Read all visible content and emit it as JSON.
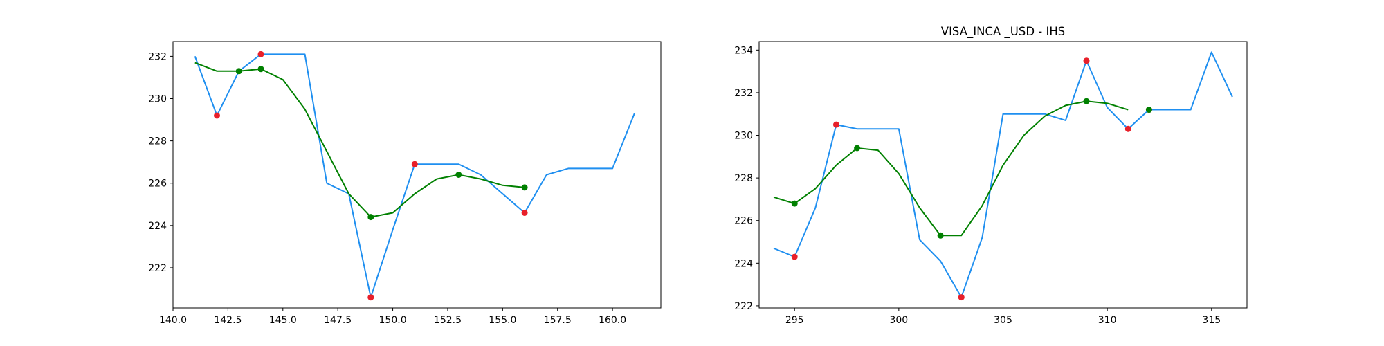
{
  "chart_data": [
    {
      "type": "line",
      "title": "",
      "xlabel": "",
      "ylabel": "",
      "xlim": [
        140,
        162.2
      ],
      "ylim": [
        220.1,
        232.7
      ],
      "xticks": [
        140,
        142.5,
        145,
        147.5,
        150,
        152.5,
        155,
        157.5,
        160
      ],
      "xtick_labels": [
        "140.0",
        "142.5",
        "145.0",
        "147.5",
        "150.0",
        "152.5",
        "155.0",
        "157.5",
        "160.0"
      ],
      "yticks": [
        222,
        224,
        226,
        228,
        230,
        232
      ],
      "ytick_labels": [
        "222",
        "224",
        "226",
        "228",
        "230",
        "232"
      ],
      "grid": false,
      "series": [
        {
          "style": "line",
          "color": "#1f8ff0",
          "x": [
            141,
            142,
            143,
            144,
            145,
            146,
            147,
            148,
            149,
            150,
            151,
            152,
            153,
            154,
            155,
            156,
            157,
            158,
            159,
            160,
            161
          ],
          "y": [
            232.0,
            229.2,
            231.3,
            232.1,
            232.1,
            232.1,
            226.0,
            225.5,
            220.6,
            223.8,
            226.9,
            226.9,
            226.9,
            226.4,
            225.5,
            224.6,
            226.4,
            226.7,
            226.7,
            226.7,
            229.3
          ]
        },
        {
          "style": "line",
          "color": "#008000",
          "x": [
            141,
            142,
            143,
            144,
            145,
            146,
            147,
            148,
            149,
            150,
            151,
            152,
            153,
            154,
            155,
            156
          ],
          "y": [
            231.7,
            231.3,
            231.3,
            231.4,
            230.9,
            229.5,
            227.5,
            225.5,
            224.4,
            224.6,
            225.5,
            226.2,
            226.4,
            226.2,
            225.9,
            225.8
          ]
        },
        {
          "style": "scatter",
          "color": "#e8202a",
          "x": [
            142,
            144,
            149,
            151,
            156
          ],
          "y": [
            229.2,
            232.1,
            220.6,
            226.9,
            224.6
          ]
        },
        {
          "style": "scatter",
          "color": "#008000",
          "x": [
            143,
            144,
            149,
            153,
            156
          ],
          "y": [
            231.3,
            231.4,
            224.4,
            226.4,
            225.8
          ]
        }
      ]
    },
    {
      "type": "line",
      "title": "VISA_INCA _USD - IHS",
      "xlabel": "",
      "ylabel": "",
      "xlim": [
        293.3,
        316.7
      ],
      "ylim": [
        221.9,
        234.4
      ],
      "xticks": [
        295,
        300,
        305,
        310,
        315
      ],
      "xtick_labels": [
        "295",
        "300",
        "305",
        "310",
        "315"
      ],
      "yticks": [
        222,
        224,
        226,
        228,
        230,
        232,
        234
      ],
      "ytick_labels": [
        "222",
        "224",
        "226",
        "228",
        "230",
        "232",
        "234"
      ],
      "grid": false,
      "series": [
        {
          "style": "line",
          "color": "#1f8ff0",
          "x": [
            294,
            295,
            296,
            297,
            298,
            299,
            300,
            301,
            302,
            303,
            304,
            305,
            306,
            307,
            308,
            309,
            310,
            311,
            312,
            313,
            314,
            315,
            316
          ],
          "y": [
            224.7,
            224.3,
            226.6,
            230.5,
            230.3,
            230.3,
            230.3,
            225.1,
            224.1,
            222.4,
            225.2,
            231.0,
            231.0,
            231.0,
            230.7,
            233.5,
            231.3,
            230.3,
            231.2,
            231.2,
            231.2,
            233.9,
            231.8
          ]
        },
        {
          "style": "line",
          "color": "#008000",
          "x": [
            294,
            295,
            296,
            297,
            298,
            299,
            300,
            301,
            302,
            303,
            304,
            305,
            306,
            307,
            308,
            309,
            310,
            311
          ],
          "y": [
            227.1,
            226.8,
            227.5,
            228.6,
            229.4,
            229.3,
            228.2,
            226.6,
            225.3,
            225.3,
            226.7,
            228.6,
            230.0,
            230.9,
            231.4,
            231.6,
            231.5,
            231.2
          ]
        },
        {
          "style": "scatter",
          "color": "#e8202a",
          "x": [
            295,
            297,
            303,
            309,
            311,
            312
          ],
          "y": [
            224.3,
            230.5,
            222.4,
            233.5,
            230.3,
            231.2
          ]
        },
        {
          "style": "scatter",
          "color": "#008000",
          "x": [
            295,
            298,
            302,
            309,
            312
          ],
          "y": [
            226.8,
            229.4,
            225.3,
            231.6,
            231.2
          ]
        }
      ]
    }
  ]
}
